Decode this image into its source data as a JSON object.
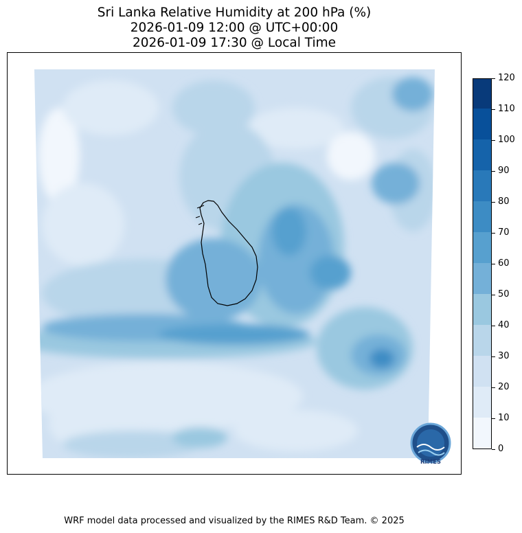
{
  "title": {
    "line1": "Sri Lanka Relative Humidity at 200 hPa (%)",
    "line2": "2026-01-09 12:00 @ UTC+00:00",
    "line3": "2026-01-09 17:30 @ Local Time"
  },
  "colorbar": {
    "ticks": [
      "0",
      "10",
      "20",
      "30",
      "40",
      "50",
      "60",
      "70",
      "80",
      "90",
      "100",
      "110",
      "120"
    ],
    "levels": [
      0,
      10,
      20,
      30,
      40,
      50,
      60,
      70,
      80,
      90,
      100,
      110,
      120
    ],
    "colors": [
      "#f2f7fd",
      "#dfebf7",
      "#d0e1f2",
      "#b9d6ea",
      "#9ac8e0",
      "#74b0d8",
      "#57a0cf",
      "#3d8cc4",
      "#2979b9",
      "#1563aa",
      "#08509a",
      "#083a7a"
    ]
  },
  "logo": {
    "text": "RIMES"
  },
  "footer": "WRF model data processed and visualized by the RIMES R&D Team. © 2025"
}
